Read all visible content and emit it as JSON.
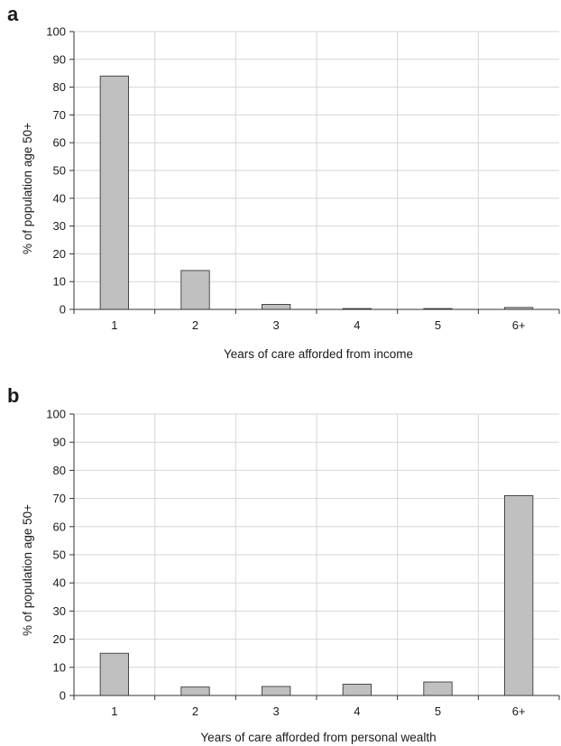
{
  "chart_data": [
    {
      "panel": "a",
      "type": "bar",
      "categories": [
        "1",
        "2",
        "3",
        "4",
        "5",
        "6+"
      ],
      "values": [
        84,
        14,
        1.8,
        0.3,
        0.3,
        0.7
      ],
      "xlabel": "Years of care afforded from income",
      "ylabel": "% of population age 50+",
      "ylim": [
        0,
        100
      ],
      "yticks": [
        0,
        10,
        20,
        30,
        40,
        50,
        60,
        70,
        80,
        90,
        100
      ],
      "grid": true,
      "bar_color": "#c0c0c0"
    },
    {
      "panel": "b",
      "type": "bar",
      "categories": [
        "1",
        "2",
        "3",
        "4",
        "5",
        "6+"
      ],
      "values": [
        15,
        3,
        3.2,
        4,
        4.8,
        71
      ],
      "xlabel": "Years of care afforded from personal wealth",
      "ylabel": "% of population age 50+",
      "ylim": [
        0,
        100
      ],
      "yticks": [
        0,
        10,
        20,
        30,
        40,
        50,
        60,
        70,
        80,
        90,
        100
      ],
      "grid": true,
      "bar_color": "#c0c0c0"
    }
  ]
}
